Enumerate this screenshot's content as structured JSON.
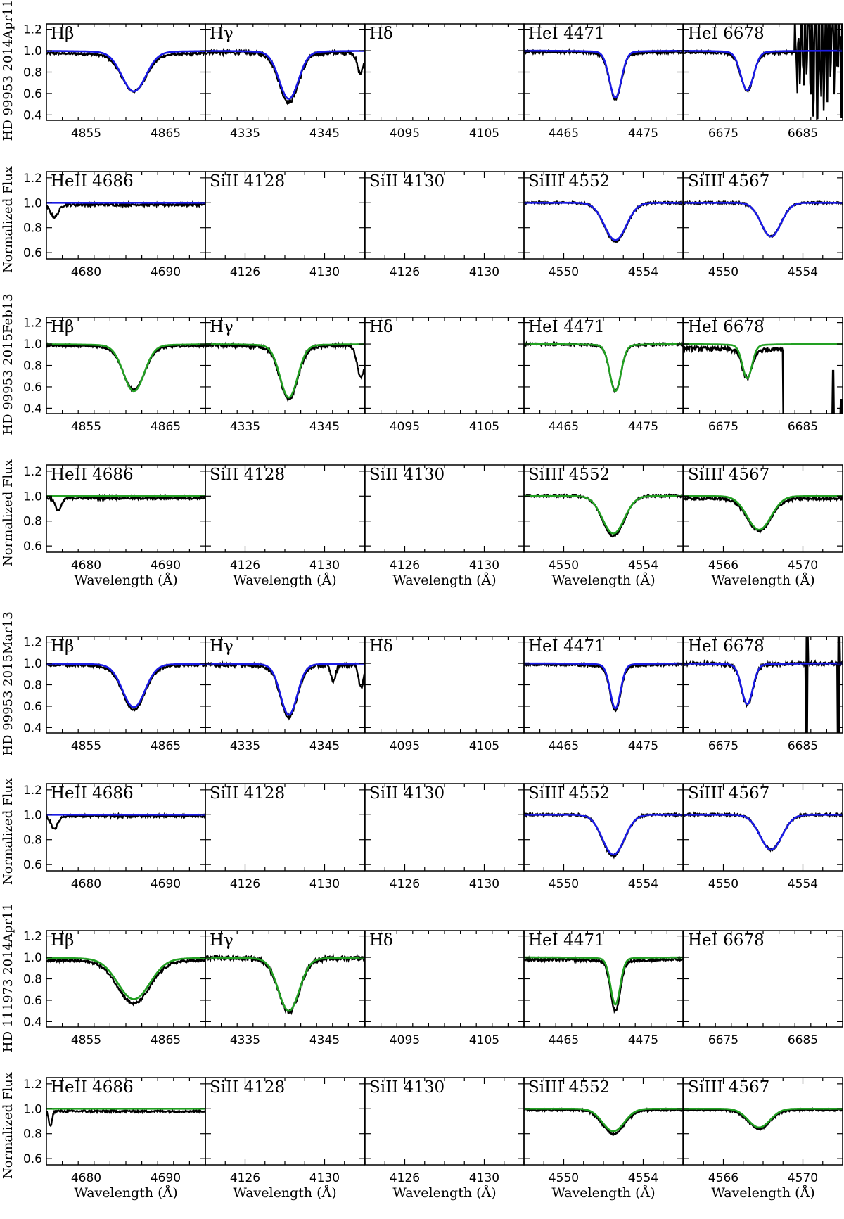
{
  "chart_data": {
    "type": "line",
    "xlabel": "Wavelength (Å)",
    "colors": {
      "observed": "#000000",
      "model_blue": "#1a1ae6",
      "model_green": "#22a022"
    },
    "row_titles": [
      "HD 99953 2014Apr11",
      "Normalized Flux",
      "HD 99953 2015Feb13",
      "Normalized Flux",
      "HD 99953 2015Mar13",
      "Normalized Flux",
      "HD 111973 2014Apr11",
      "Normalized Flux"
    ],
    "y_ticks_balmer": [
      "1.2",
      "1.0",
      "0.8",
      "0.6",
      "0.4"
    ],
    "y_ticks_metal": [
      "1.2",
      "1.0",
      "0.8",
      "0.6"
    ],
    "ylim_balmer": [
      0.35,
      1.25
    ],
    "ylim_metal": [
      0.55,
      1.25
    ],
    "rows": [
      {
        "model": "blue",
        "yrange": "balmer",
        "xlabel": false,
        "panels": [
          {
            "label": "Hβ",
            "xlim": [
              4850,
              4870
            ],
            "ticks": [
              4855,
              4865
            ],
            "center": 4861,
            "depth": 0.36,
            "width": 1.5,
            "obsdepth": 0.33,
            "cont": 0.98,
            "noise": 0.01,
            "extra": []
          },
          {
            "label": "Hγ",
            "xlim": [
              4330,
              4350
            ],
            "ticks": [
              4335,
              4345
            ],
            "center": 4340.5,
            "depth": 0.43,
            "width": 1.2,
            "obsdepth": 0.44,
            "cont": 0.99,
            "noise": 0.02,
            "extra": [
              {
                "x": 4349.5,
                "d": 0.2,
                "w": 0.4
              }
            ]
          },
          {
            "label": "Hδ",
            "xlim": [
              4090,
              4110
            ],
            "ticks": [
              4095,
              4105
            ],
            "empty": true
          },
          {
            "label": "HeI 4471",
            "xlim": [
              4460,
              4480
            ],
            "ticks": [
              4465,
              4475
            ],
            "center": 4471.5,
            "depth": 0.42,
            "width": 0.75,
            "obsdepth": 0.41,
            "cont": 0.99,
            "noise": 0.012,
            "extra": []
          },
          {
            "label": "HeI 6678",
            "xlim": [
              6670,
              6690
            ],
            "ticks": [
              6675,
              6685
            ],
            "center": 6678,
            "depth": 0.35,
            "width": 0.8,
            "obsdepth": 0.33,
            "cont": 0.99,
            "noise": 0.012,
            "extra": [],
            "wild": [
              6684,
              6690
            ]
          }
        ]
      },
      {
        "model": "blue",
        "yrange": "metal",
        "xlabel": false,
        "panels": [
          {
            "label": "HeII 4686",
            "xlim": [
              4675,
              4695
            ],
            "ticks": [
              4680,
              4690
            ],
            "flat": true,
            "cont": 0.985,
            "noise": 0.01,
            "extra": [
              {
                "x": 4676,
                "d": 0.1,
                "w": 0.5
              }
            ]
          },
          {
            "label": "SiII 4128",
            "xlim": [
              4124,
              4132
            ],
            "ticks": [
              4126,
              4130
            ],
            "empty": true
          },
          {
            "label": "SiII 4130",
            "xlim": [
              4124,
              4132
            ],
            "ticks": [
              4126,
              4130
            ],
            "empty": true
          },
          {
            "label": "SiIII 4552",
            "xlim": [
              4548,
              4556
            ],
            "ticks": [
              4550,
              4554
            ],
            "center": 4552.6,
            "depth": 0.3,
            "width": 0.55,
            "obsdepth": 0.31,
            "cont": 1.0,
            "noise": 0.008,
            "extra": []
          },
          {
            "label": "SiIII 4567",
            "xlim": [
              4548,
              4556
            ],
            "ticks": [
              4550,
              4554
            ],
            "center": 4552.4,
            "depth": 0.27,
            "width": 0.5,
            "obsdepth": 0.27,
            "cont": 1.0,
            "noise": 0.008,
            "extra": []
          }
        ]
      },
      {
        "model": "green",
        "yrange": "balmer",
        "xlabel": false,
        "panels": [
          {
            "label": "Hβ",
            "xlim": [
              4850,
              4870
            ],
            "ticks": [
              4855,
              4865
            ],
            "center": 4861,
            "depth": 0.42,
            "width": 1.3,
            "obsdepth": 0.39,
            "cont": 0.99,
            "noise": 0.01,
            "extra": []
          },
          {
            "label": "Hγ",
            "xlim": [
              4330,
              4350
            ],
            "ticks": [
              4335,
              4345
            ],
            "center": 4340.5,
            "depth": 0.48,
            "width": 1.1,
            "obsdepth": 0.48,
            "cont": 0.99,
            "noise": 0.015,
            "extra": [
              {
                "x": 4349.6,
                "d": 0.3,
                "w": 0.5
              }
            ]
          },
          {
            "label": "Hδ",
            "xlim": [
              4090,
              4110
            ],
            "ticks": [
              4095,
              4105
            ],
            "empty": true
          },
          {
            "label": "HeI 4471",
            "xlim": [
              4460,
              4480
            ],
            "ticks": [
              4465,
              4475
            ],
            "center": 4471.5,
            "depth": 0.42,
            "width": 0.7,
            "obsdepth": 0.41,
            "cont": 1.0,
            "noise": 0.01,
            "extra": []
          },
          {
            "label": "HeI 6678",
            "xlim": [
              6670,
              6690
            ],
            "ticks": [
              6675,
              6685
            ],
            "center": 6678,
            "depth": 0.3,
            "width": 0.6,
            "obsdepth": 0.25,
            "cont": 0.96,
            "noise": 0.02,
            "extra": [],
            "drop": [
              6682.4,
              6690
            ]
          }
        ]
      },
      {
        "model": "green",
        "yrange": "metal",
        "xlabel": true,
        "panels": [
          {
            "label": "HeII 4686",
            "xlim": [
              4675,
              4695
            ],
            "ticks": [
              4680,
              4690
            ],
            "flat": true,
            "cont": 0.985,
            "noise": 0.01,
            "extra": [
              {
                "x": 4676.5,
                "d": 0.1,
                "w": 0.4
              }
            ]
          },
          {
            "label": "SiII 4128",
            "xlim": [
              4124,
              4132
            ],
            "ticks": [
              4126,
              4130
            ],
            "empty": true
          },
          {
            "label": "SiII 4130",
            "xlim": [
              4124,
              4132
            ],
            "ticks": [
              4126,
              4130
            ],
            "empty": true
          },
          {
            "label": "SiIII 4552",
            "xlim": [
              4548,
              4556
            ],
            "ticks": [
              4550,
              4554
            ],
            "center": 4552.5,
            "depth": 0.3,
            "width": 0.55,
            "obsdepth": 0.32,
            "cont": 1.0,
            "noise": 0.008,
            "extra": []
          },
          {
            "label": "SiIII 4567",
            "xlim": [
              4564,
              4572
            ],
            "ticks": [
              4566,
              4570
            ],
            "center": 4567.8,
            "depth": 0.27,
            "width": 0.6,
            "obsdepth": 0.26,
            "cont": 0.98,
            "noise": 0.01,
            "extra": []
          }
        ]
      },
      {
        "model": "blue",
        "yrange": "balmer",
        "xlabel": false,
        "panels": [
          {
            "label": "Hβ",
            "xlim": [
              4850,
              4870
            ],
            "ticks": [
              4855,
              4865
            ],
            "center": 4861,
            "depth": 0.39,
            "width": 1.4,
            "obsdepth": 0.39,
            "cont": 0.99,
            "noise": 0.01,
            "extra": []
          },
          {
            "label": "Hγ",
            "xlim": [
              4330,
              4350
            ],
            "ticks": [
              4335,
              4345
            ],
            "center": 4340.5,
            "depth": 0.46,
            "width": 1.05,
            "obsdepth": 0.46,
            "cont": 0.99,
            "noise": 0.015,
            "extra": [
              {
                "x": 4346.1,
                "d": 0.15,
                "w": 0.3
              },
              {
                "x": 4349.6,
                "d": 0.22,
                "w": 0.3
              }
            ]
          },
          {
            "label": "Hδ",
            "xlim": [
              4090,
              4110
            ],
            "ticks": [
              4095,
              4105
            ],
            "empty": true
          },
          {
            "label": "HeI 4471",
            "xlim": [
              4460,
              4480
            ],
            "ticks": [
              4465,
              4475
            ],
            "center": 4471.5,
            "depth": 0.4,
            "width": 0.65,
            "obsdepth": 0.4,
            "cont": 0.99,
            "noise": 0.01,
            "extra": []
          },
          {
            "label": "HeI 6678",
            "xlim": [
              6670,
              6690
            ],
            "ticks": [
              6675,
              6685
            ],
            "center": 6678,
            "depth": 0.36,
            "width": 0.7,
            "obsdepth": 0.36,
            "cont": 1.0,
            "noise": 0.015,
            "extra": [],
            "spikes": [
              6685.5,
              6689.5
            ]
          }
        ]
      },
      {
        "model": "blue",
        "yrange": "metal",
        "xlabel": false,
        "panels": [
          {
            "label": "HeII 4686",
            "xlim": [
              4675,
              4695
            ],
            "ticks": [
              4680,
              4690
            ],
            "flat": true,
            "cont": 0.99,
            "noise": 0.01,
            "extra": [
              {
                "x": 4676,
                "d": 0.1,
                "w": 0.45
              }
            ]
          },
          {
            "label": "SiII 4128",
            "xlim": [
              4124,
              4132
            ],
            "ticks": [
              4126,
              4130
            ],
            "empty": true
          },
          {
            "label": "SiII 4130",
            "xlim": [
              4124,
              4132
            ],
            "ticks": [
              4126,
              4130
            ],
            "empty": true
          },
          {
            "label": "SiIII 4552",
            "xlim": [
              4548,
              4556
            ],
            "ticks": [
              4550,
              4554
            ],
            "center": 4552.5,
            "depth": 0.32,
            "width": 0.55,
            "obsdepth": 0.33,
            "cont": 1.0,
            "noise": 0.008,
            "extra": []
          },
          {
            "label": "SiIII 4567",
            "xlim": [
              4548,
              4556
            ],
            "ticks": [
              4550,
              4554
            ],
            "center": 4552.4,
            "depth": 0.28,
            "width": 0.55,
            "obsdepth": 0.28,
            "cont": 1.0,
            "noise": 0.008,
            "extra": []
          }
        ]
      },
      {
        "model": "green",
        "yrange": "balmer",
        "xlabel": false,
        "panels": [
          {
            "label": "Hβ",
            "xlim": [
              4850,
              4870
            ],
            "ticks": [
              4855,
              4865
            ],
            "center": 4861,
            "depth": 0.37,
            "width": 2.0,
            "obsdepth": 0.38,
            "cont": 0.98,
            "noise": 0.012,
            "extra": []
          },
          {
            "label": "Hγ",
            "xlim": [
              4330,
              4350
            ],
            "ticks": [
              4335,
              4345
            ],
            "center": 4340.5,
            "depth": 0.48,
            "width": 1.3,
            "obsdepth": 0.48,
            "cont": 1.0,
            "noise": 0.02,
            "extra": []
          },
          {
            "label": "Hδ",
            "xlim": [
              4090,
              4110
            ],
            "ticks": [
              4095,
              4105
            ],
            "empty": true
          },
          {
            "label": "HeI 4471",
            "xlim": [
              4460,
              4480
            ],
            "ticks": [
              4465,
              4475
            ],
            "center": 4471.5,
            "depth": 0.42,
            "width": 0.6,
            "obsdepth": 0.45,
            "cont": 0.98,
            "noise": 0.012,
            "extra": []
          },
          {
            "label": "HeI 6678",
            "xlim": [
              6670,
              6690
            ],
            "ticks": [
              6675,
              6685
            ],
            "empty": true
          }
        ]
      },
      {
        "model": "green",
        "yrange": "metal",
        "xlabel": true,
        "panels": [
          {
            "label": "HeII 4686",
            "xlim": [
              4675,
              4695
            ],
            "ticks": [
              4680,
              4690
            ],
            "flat": true,
            "cont": 0.98,
            "noise": 0.008,
            "extra": [
              {
                "x": 4675.5,
                "d": 0.12,
                "w": 0.2
              }
            ]
          },
          {
            "label": "SiII 4128",
            "xlim": [
              4124,
              4132
            ],
            "ticks": [
              4126,
              4130
            ],
            "empty": true
          },
          {
            "label": "SiII 4130",
            "xlim": [
              4124,
              4132
            ],
            "ticks": [
              4126,
              4130
            ],
            "empty": true
          },
          {
            "label": "SiIII 4552",
            "xlim": [
              4548,
              4556
            ],
            "ticks": [
              4550,
              4554
            ],
            "center": 4552.5,
            "depth": 0.18,
            "width": 0.55,
            "obsdepth": 0.19,
            "cont": 0.99,
            "noise": 0.008,
            "extra": []
          },
          {
            "label": "SiIII 4567",
            "xlim": [
              4564,
              4572
            ],
            "ticks": [
              4566,
              4570
            ],
            "center": 4567.8,
            "depth": 0.15,
            "width": 0.55,
            "obsdepth": 0.15,
            "cont": 0.99,
            "noise": 0.008,
            "extra": []
          }
        ]
      }
    ]
  }
}
